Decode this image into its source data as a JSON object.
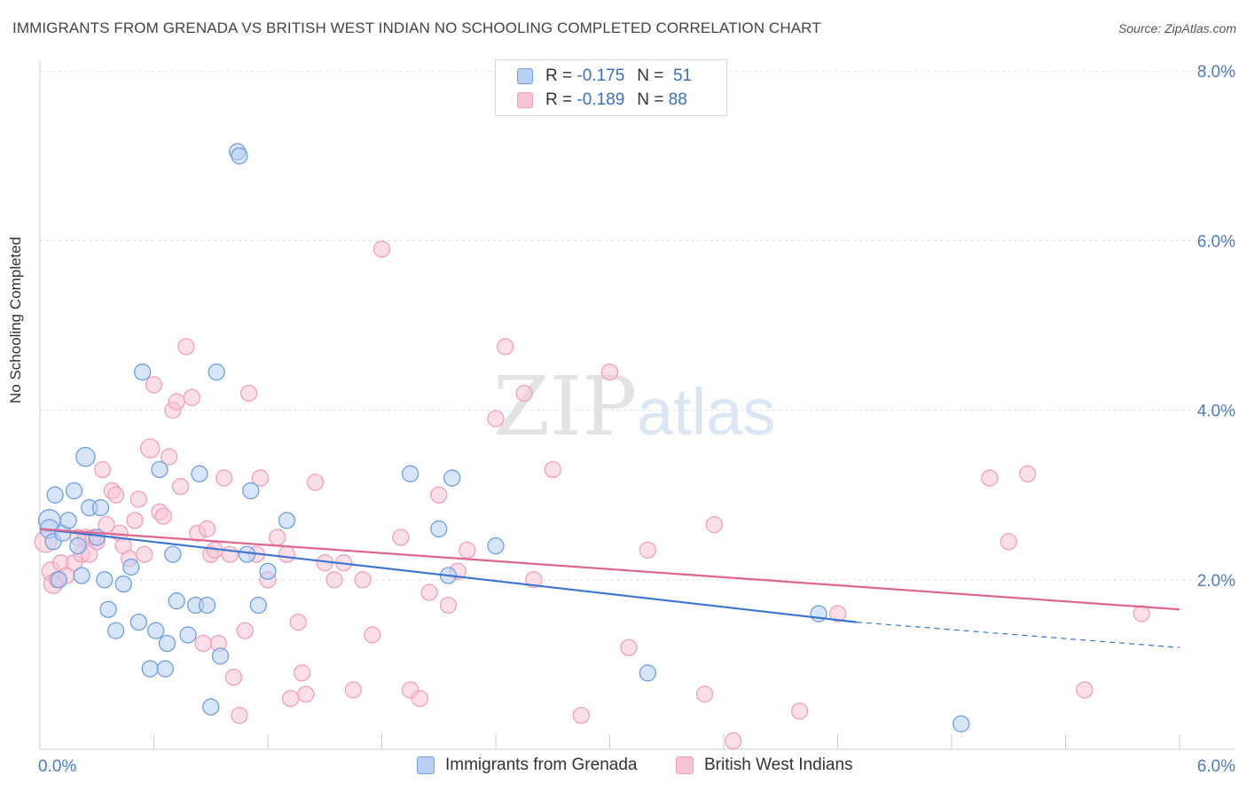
{
  "title": "IMMIGRANTS FROM GRENADA VS BRITISH WEST INDIAN NO SCHOOLING COMPLETED CORRELATION CHART",
  "source": "Source: ZipAtlas.com",
  "watermark": {
    "zip": "ZIP",
    "atlas": "atlas"
  },
  "chart_data": {
    "type": "scatter",
    "ylabel": "No Schooling Completed",
    "xlim": [
      0,
      6
    ],
    "ylim": [
      0,
      8
    ],
    "x_tick_labels": [
      "0.0%",
      "6.0%"
    ],
    "y_ticks": [
      2,
      4,
      6,
      8
    ],
    "y_tick_labels": [
      "2.0%",
      "4.0%",
      "6.0%",
      "8.0%"
    ],
    "grid": true,
    "legend_placement": "top-center",
    "series": [
      {
        "name": "Immigrants from Grenada",
        "color": "#6f9fe0",
        "fill": "#b8d0f4",
        "line_color": "#3a74d0",
        "R": "-0.175",
        "N": "51",
        "trend": {
          "x0": 0.0,
          "y0": 2.6,
          "x1": 4.3,
          "y1": 1.5,
          "dash_to_x": 6.0,
          "dash_to_y": 1.2
        },
        "points": [
          [
            0.05,
            2.7,
            14
          ],
          [
            0.05,
            2.6,
            12
          ],
          [
            0.07,
            2.45,
            10
          ],
          [
            0.08,
            3.0,
            10
          ],
          [
            0.1,
            2.0,
            10
          ],
          [
            0.12,
            2.55,
            10
          ],
          [
            0.15,
            2.7,
            10
          ],
          [
            0.18,
            3.05,
            10
          ],
          [
            0.2,
            2.4,
            10
          ],
          [
            0.22,
            2.05,
            10
          ],
          [
            0.24,
            3.45,
            12
          ],
          [
            0.26,
            2.85,
            10
          ],
          [
            0.3,
            2.5,
            10
          ],
          [
            0.32,
            2.85,
            10
          ],
          [
            0.34,
            2.0,
            10
          ],
          [
            0.36,
            1.65,
            10
          ],
          [
            0.4,
            1.4,
            10
          ],
          [
            0.44,
            1.95,
            10
          ],
          [
            0.48,
            2.15,
            10
          ],
          [
            0.52,
            1.5,
            10
          ],
          [
            0.54,
            4.45,
            10
          ],
          [
            0.58,
            0.95,
            10
          ],
          [
            0.61,
            1.4,
            10
          ],
          [
            0.63,
            3.3,
            10
          ],
          [
            0.66,
            0.95,
            10
          ],
          [
            0.67,
            1.25,
            10
          ],
          [
            0.7,
            2.3,
            10
          ],
          [
            0.72,
            1.75,
            10
          ],
          [
            0.78,
            1.35,
            10
          ],
          [
            0.82,
            1.7,
            10
          ],
          [
            0.84,
            3.25,
            10
          ],
          [
            0.88,
            1.7,
            10
          ],
          [
            0.9,
            0.5,
            10
          ],
          [
            0.93,
            4.45,
            10
          ],
          [
            0.95,
            1.1,
            10
          ],
          [
            1.04,
            7.05,
            10
          ],
          [
            1.05,
            7.0,
            10
          ],
          [
            1.09,
            2.3,
            10
          ],
          [
            1.11,
            3.05,
            10
          ],
          [
            1.15,
            1.7,
            10
          ],
          [
            1.2,
            2.1,
            10
          ],
          [
            1.3,
            2.7,
            10
          ],
          [
            1.95,
            3.25,
            10
          ],
          [
            2.1,
            2.6,
            10
          ],
          [
            2.15,
            2.05,
            10
          ],
          [
            2.17,
            3.2,
            10
          ],
          [
            2.4,
            2.4,
            10
          ],
          [
            3.2,
            0.9,
            10
          ],
          [
            4.1,
            1.6,
            10
          ],
          [
            4.85,
            0.3,
            10
          ]
        ]
      },
      {
        "name": "British West Indians",
        "color": "#f0a0ba",
        "fill": "#f8c4d4",
        "line_color": "#e0658e",
        "R": "-0.189",
        "N": "88",
        "trend": {
          "x0": 0.0,
          "y0": 2.6,
          "x1": 6.0,
          "y1": 1.65
        },
        "points": [
          [
            0.03,
            2.45,
            14
          ],
          [
            0.06,
            2.1,
            12
          ],
          [
            0.07,
            1.95,
            12
          ],
          [
            0.09,
            2.0,
            10
          ],
          [
            0.11,
            2.2,
            10
          ],
          [
            0.14,
            2.05,
            10
          ],
          [
            0.18,
            2.2,
            10
          ],
          [
            0.2,
            2.5,
            10
          ],
          [
            0.22,
            2.3,
            10
          ],
          [
            0.24,
            2.5,
            10
          ],
          [
            0.26,
            2.3,
            10
          ],
          [
            0.28,
            2.5,
            10
          ],
          [
            0.3,
            2.45,
            10
          ],
          [
            0.33,
            3.3,
            10
          ],
          [
            0.35,
            2.65,
            10
          ],
          [
            0.38,
            3.05,
            10
          ],
          [
            0.4,
            3.0,
            10
          ],
          [
            0.42,
            2.55,
            10
          ],
          [
            0.44,
            2.4,
            10
          ],
          [
            0.47,
            2.25,
            10
          ],
          [
            0.5,
            2.7,
            10
          ],
          [
            0.52,
            2.95,
            10
          ],
          [
            0.55,
            2.3,
            10
          ],
          [
            0.58,
            3.55,
            12
          ],
          [
            0.6,
            4.3,
            10
          ],
          [
            0.63,
            2.8,
            10
          ],
          [
            0.65,
            2.75,
            10
          ],
          [
            0.68,
            3.45,
            10
          ],
          [
            0.7,
            4.0,
            10
          ],
          [
            0.72,
            4.1,
            10
          ],
          [
            0.74,
            3.1,
            10
          ],
          [
            0.77,
            4.75,
            10
          ],
          [
            0.8,
            4.15,
            10
          ],
          [
            0.83,
            2.55,
            10
          ],
          [
            0.86,
            1.25,
            10
          ],
          [
            0.88,
            2.6,
            10
          ],
          [
            0.9,
            2.3,
            10
          ],
          [
            0.92,
            2.35,
            10
          ],
          [
            0.94,
            1.25,
            10
          ],
          [
            0.97,
            3.2,
            10
          ],
          [
            1.0,
            2.3,
            10
          ],
          [
            1.02,
            0.85,
            10
          ],
          [
            1.05,
            0.4,
            10
          ],
          [
            1.08,
            1.4,
            10
          ],
          [
            1.1,
            4.2,
            10
          ],
          [
            1.14,
            2.3,
            10
          ],
          [
            1.16,
            3.2,
            10
          ],
          [
            1.2,
            2.0,
            10
          ],
          [
            1.25,
            2.5,
            10
          ],
          [
            1.3,
            2.3,
            10
          ],
          [
            1.32,
            0.6,
            10
          ],
          [
            1.36,
            1.5,
            10
          ],
          [
            1.38,
            0.9,
            10
          ],
          [
            1.4,
            0.65,
            10
          ],
          [
            1.45,
            3.15,
            10
          ],
          [
            1.5,
            2.2,
            10
          ],
          [
            1.55,
            2.0,
            10
          ],
          [
            1.6,
            2.2,
            10
          ],
          [
            1.65,
            0.7,
            10
          ],
          [
            1.7,
            2.0,
            10
          ],
          [
            1.75,
            1.35,
            10
          ],
          [
            1.8,
            5.9,
            10
          ],
          [
            1.9,
            2.5,
            10
          ],
          [
            1.95,
            0.7,
            10
          ],
          [
            2.0,
            0.6,
            10
          ],
          [
            2.05,
            1.85,
            10
          ],
          [
            2.1,
            3.0,
            10
          ],
          [
            2.15,
            1.7,
            10
          ],
          [
            2.2,
            2.1,
            10
          ],
          [
            2.25,
            2.35,
            10
          ],
          [
            2.4,
            3.9,
            10
          ],
          [
            2.45,
            4.75,
            10
          ],
          [
            2.55,
            4.2,
            10
          ],
          [
            2.6,
            2.0,
            10
          ],
          [
            2.7,
            3.3,
            10
          ],
          [
            2.85,
            0.4,
            10
          ],
          [
            3.0,
            4.45,
            10
          ],
          [
            3.1,
            1.2,
            10
          ],
          [
            3.2,
            2.35,
            10
          ],
          [
            3.5,
            0.65,
            10
          ],
          [
            3.55,
            2.65,
            10
          ],
          [
            3.65,
            0.1,
            10
          ],
          [
            4.0,
            0.45,
            10
          ],
          [
            4.2,
            1.6,
            10
          ],
          [
            5.0,
            3.2,
            10
          ],
          [
            5.1,
            2.45,
            10
          ],
          [
            5.2,
            3.25,
            10
          ],
          [
            5.5,
            0.7,
            10
          ],
          [
            5.8,
            1.6,
            10
          ]
        ]
      }
    ]
  }
}
